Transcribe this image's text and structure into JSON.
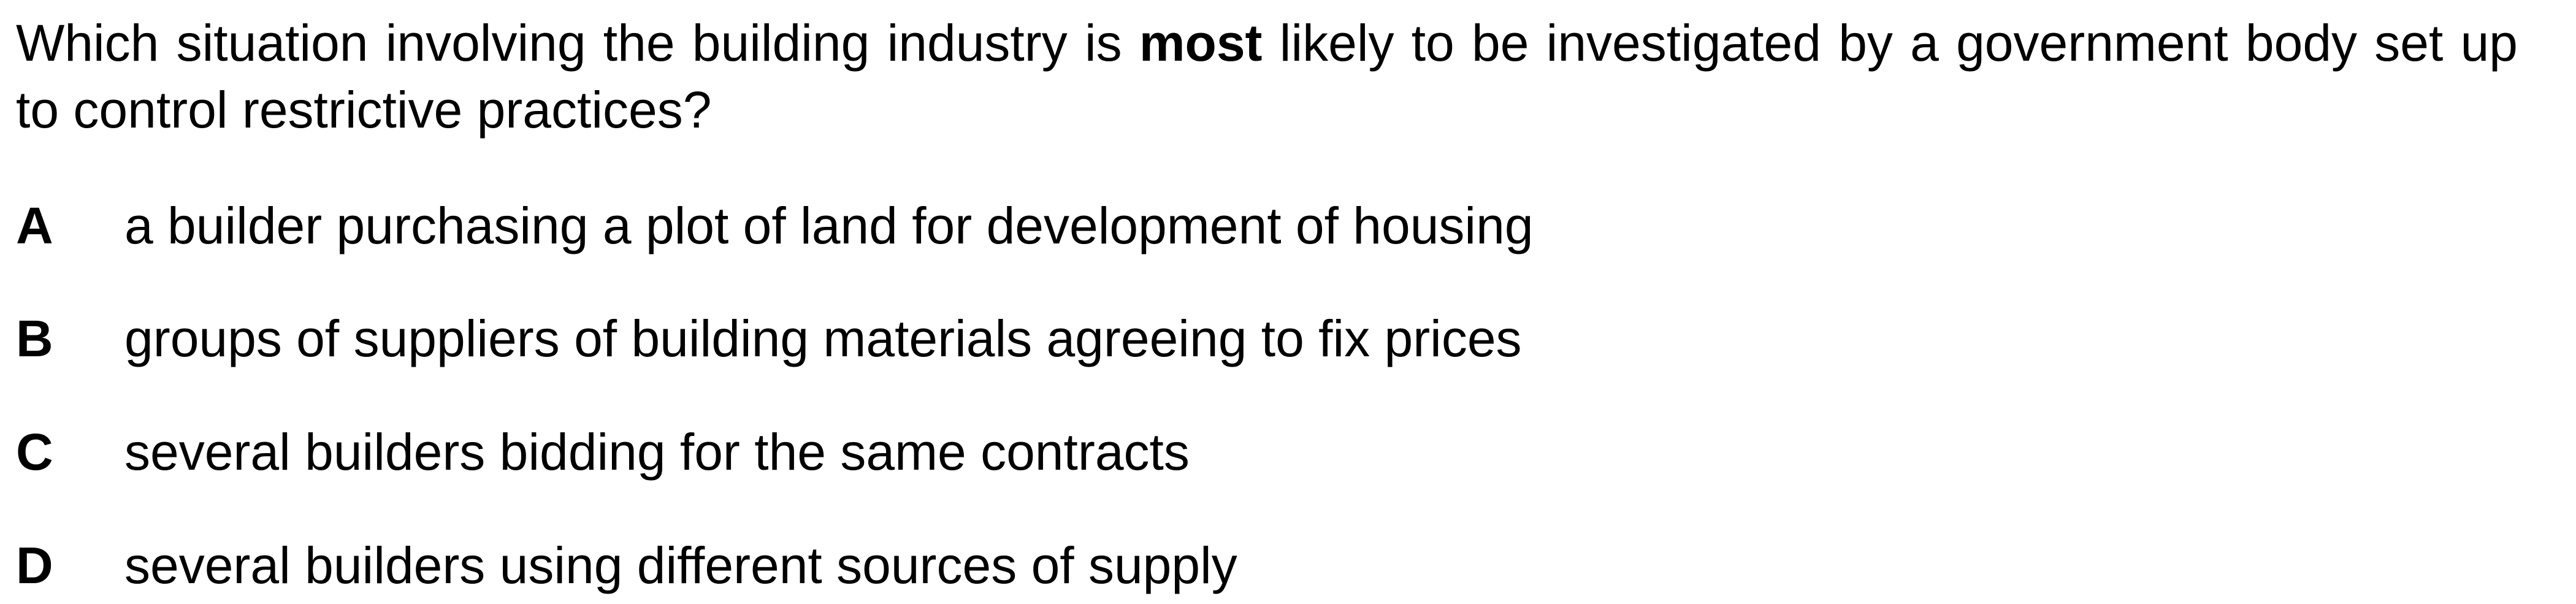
{
  "question": {
    "before": "Which situation involving the building industry is ",
    "emphasis": "most",
    "after": " likely to be investigated by a government body set up to control restrictive practices?"
  },
  "options": [
    {
      "letter": "A",
      "text": "a builder purchasing a plot of land for development of housing"
    },
    {
      "letter": "B",
      "text": "groups of suppliers of building materials agreeing to fix prices"
    },
    {
      "letter": "C",
      "text": "several builders bidding for the same contracts"
    },
    {
      "letter": "D",
      "text": "several builders using different sources of supply"
    }
  ]
}
